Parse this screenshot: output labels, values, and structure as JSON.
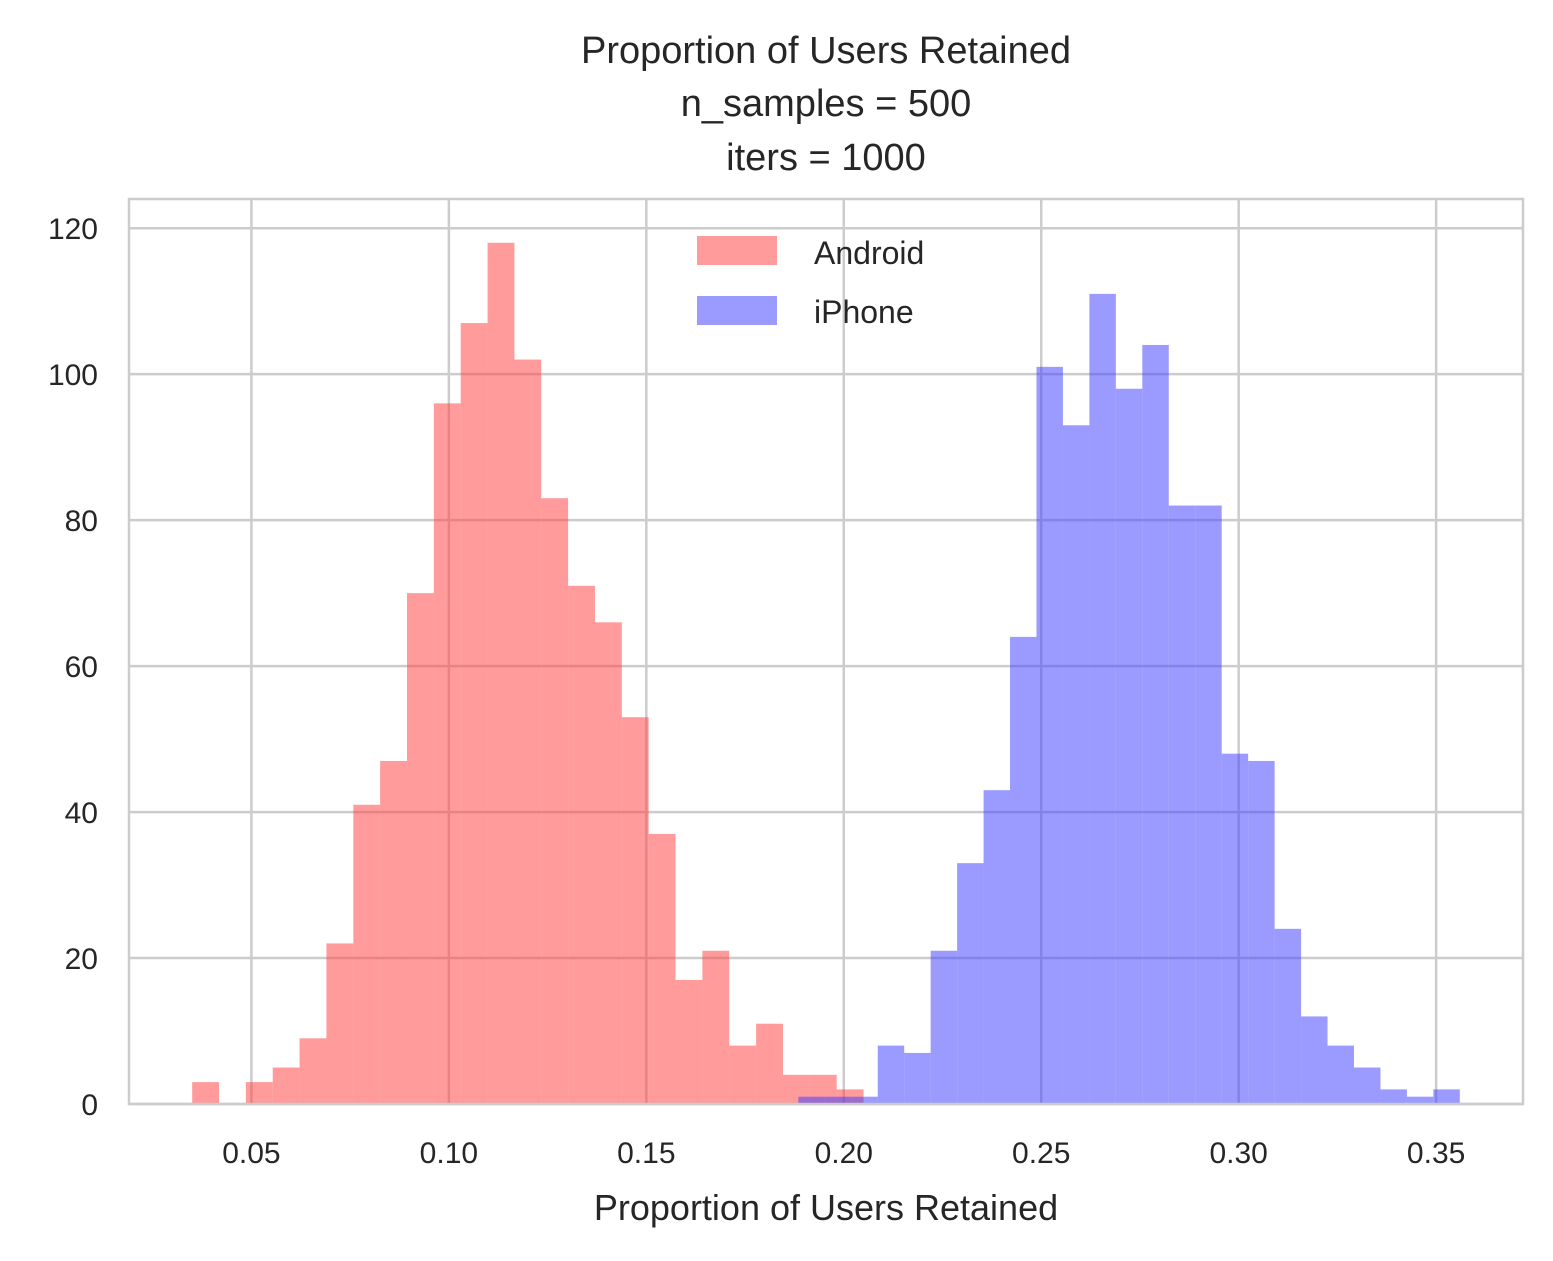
{
  "chart_data": {
    "type": "bar",
    "title_lines": [
      "Proportion of Users Retained",
      "n_samples = 500",
      "iters = 1000"
    ],
    "xlabel": "Proportion of Users Retained",
    "ylabel": "",
    "xlim": [
      0.019,
      0.372
    ],
    "ylim": [
      0,
      124
    ],
    "xticks": [
      0.05,
      0.1,
      0.15,
      0.2,
      0.25,
      0.3,
      0.35
    ],
    "xtick_labels": [
      "0.05",
      "0.10",
      "0.15",
      "0.20",
      "0.25",
      "0.30",
      "0.35"
    ],
    "yticks": [
      0,
      20,
      40,
      60,
      80,
      100,
      120
    ],
    "ytick_labels": [
      "0",
      "20",
      "40",
      "60",
      "80",
      "100",
      "120"
    ],
    "grid": true,
    "legend_position": "top-center",
    "series": [
      {
        "name": "Android",
        "color": "#ff4040",
        "opacity": 0.52,
        "bin_start": 0.035,
        "bin_width": 0.0068,
        "counts": [
          3,
          0,
          3,
          5,
          9,
          22,
          41,
          47,
          70,
          96,
          107,
          118,
          102,
          83,
          71,
          66,
          53,
          37,
          17,
          21,
          8,
          11,
          4,
          4,
          2
        ]
      },
      {
        "name": "iPhone",
        "color": "#4040ff",
        "opacity": 0.52,
        "bin_start": 0.1885,
        "bin_width": 0.0067,
        "counts": [
          1,
          1,
          1,
          8,
          7,
          21,
          33,
          43,
          64,
          101,
          93,
          111,
          98,
          104,
          82,
          82,
          48,
          47,
          24,
          12,
          8,
          5,
          2,
          1,
          2
        ]
      }
    ]
  }
}
